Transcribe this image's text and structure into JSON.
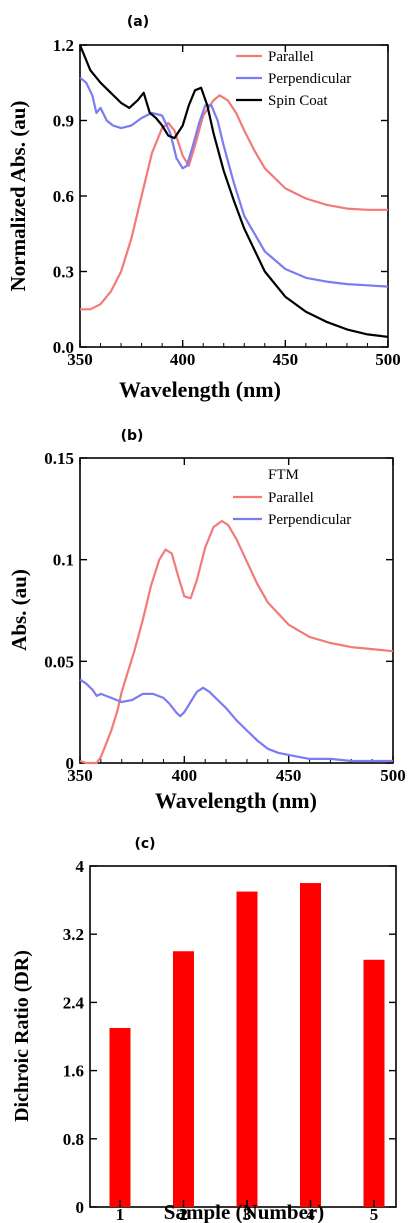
{
  "chart_data": [
    {
      "panel_label": "(a)",
      "type": "line",
      "xlabel": "Wavelength (nm)",
      "ylabel": "Normalized Abs. (au)",
      "xlim": [
        350,
        500
      ],
      "ylim": [
        0,
        1.2
      ],
      "xticks": [
        350,
        400,
        450,
        500
      ],
      "yticks": [
        0.0,
        0.3,
        0.6,
        0.9,
        1.2
      ],
      "xtick_labels": [
        "350",
        "400",
        "450",
        "500"
      ],
      "ytick_labels": [
        "0.0",
        "0.3",
        "0.6",
        "0.9",
        "1.2"
      ],
      "legend_title": "",
      "legend_position": "top-right",
      "series": [
        {
          "name": "Parallel",
          "color": "#f27a7a",
          "x": [
            350,
            355,
            360,
            365,
            370,
            375,
            380,
            385,
            390,
            393,
            396,
            400,
            403,
            406,
            410,
            415,
            418,
            422,
            426,
            430,
            435,
            440,
            450,
            460,
            470,
            480,
            490,
            500
          ],
          "y": [
            0.15,
            0.15,
            0.17,
            0.22,
            0.3,
            0.43,
            0.6,
            0.77,
            0.87,
            0.89,
            0.86,
            0.76,
            0.72,
            0.8,
            0.92,
            0.98,
            1.0,
            0.98,
            0.93,
            0.86,
            0.78,
            0.71,
            0.63,
            0.59,
            0.565,
            0.55,
            0.545,
            0.545
          ]
        },
        {
          "name": "Perpendicular",
          "color": "#7b7bf2",
          "x": [
            350,
            353,
            356,
            358,
            360,
            363,
            366,
            370,
            375,
            380,
            385,
            390,
            394,
            397,
            400,
            402,
            405,
            408,
            411,
            414,
            417,
            420,
            425,
            430,
            440,
            450,
            460,
            470,
            480,
            490,
            500
          ],
          "y": [
            1.07,
            1.05,
            1.0,
            0.93,
            0.95,
            0.9,
            0.88,
            0.87,
            0.88,
            0.91,
            0.93,
            0.92,
            0.85,
            0.75,
            0.71,
            0.72,
            0.8,
            0.89,
            0.96,
            0.96,
            0.9,
            0.8,
            0.65,
            0.52,
            0.38,
            0.31,
            0.275,
            0.26,
            0.25,
            0.245,
            0.24
          ]
        },
        {
          "name": "Spin Coat",
          "color": "#000000",
          "x": [
            350,
            355,
            360,
            365,
            370,
            374,
            378,
            381,
            384,
            387,
            390,
            393,
            396,
            400,
            403,
            406,
            409,
            412,
            415,
            420,
            425,
            430,
            440,
            450,
            460,
            470,
            480,
            490,
            500
          ],
          "y": [
            1.2,
            1.1,
            1.05,
            1.01,
            0.97,
            0.95,
            0.98,
            1.01,
            0.93,
            0.91,
            0.88,
            0.84,
            0.83,
            0.88,
            0.96,
            1.02,
            1.03,
            0.96,
            0.85,
            0.7,
            0.58,
            0.47,
            0.3,
            0.2,
            0.14,
            0.1,
            0.07,
            0.05,
            0.04
          ]
        }
      ]
    },
    {
      "panel_label": "(b)",
      "type": "line",
      "xlabel": "Wavelength (nm)",
      "ylabel": "Abs. (au)",
      "xlim": [
        350,
        500
      ],
      "ylim": [
        0,
        0.15
      ],
      "xticks": [
        350,
        400,
        450,
        500
      ],
      "yticks": [
        0,
        0.05,
        0.1,
        0.15
      ],
      "xtick_labels": [
        "350",
        "400",
        "450",
        "500"
      ],
      "ytick_labels": [
        "0",
        "0.05",
        "0.1",
        "0.15"
      ],
      "legend_title": "FTM",
      "legend_position": "top-right",
      "series": [
        {
          "name": " Parallel",
          "color": "#f27a7a",
          "x": [
            350,
            353,
            356,
            358,
            360,
            362,
            365,
            368,
            370,
            373,
            376,
            380,
            384,
            388,
            391,
            394,
            397,
            400,
            403,
            406,
            410,
            414,
            418,
            421,
            425,
            430,
            435,
            440,
            450,
            460,
            470,
            480,
            490,
            500
          ],
          "y": [
            0.001,
            0.0,
            0.0,
            0.0,
            0.003,
            0.008,
            0.016,
            0.026,
            0.035,
            0.045,
            0.055,
            0.07,
            0.087,
            0.1,
            0.105,
            0.103,
            0.092,
            0.082,
            0.081,
            0.09,
            0.106,
            0.116,
            0.119,
            0.117,
            0.11,
            0.099,
            0.088,
            0.079,
            0.068,
            0.062,
            0.059,
            0.057,
            0.056,
            0.055
          ]
        },
        {
          "name": "Perpendicular",
          "color": "#7b7bf2",
          "x": [
            350,
            353,
            356,
            358,
            360,
            365,
            370,
            375,
            380,
            385,
            390,
            393,
            396,
            398,
            400,
            403,
            406,
            409,
            412,
            416,
            420,
            425,
            430,
            435,
            440,
            445,
            450,
            460,
            470,
            480,
            490,
            500
          ],
          "y": [
            0.041,
            0.039,
            0.036,
            0.033,
            0.034,
            0.032,
            0.03,
            0.031,
            0.034,
            0.034,
            0.032,
            0.029,
            0.025,
            0.023,
            0.025,
            0.03,
            0.035,
            0.037,
            0.035,
            0.031,
            0.027,
            0.021,
            0.016,
            0.011,
            0.007,
            0.005,
            0.004,
            0.002,
            0.002,
            0.001,
            0.001,
            0.001
          ]
        }
      ]
    },
    {
      "panel_label": "(c)",
      "type": "bar",
      "xlabel": "Sample (Number)",
      "ylabel": "Dichroic Ratio (DR)",
      "categories": [
        "1",
        "2",
        "3",
        "4",
        "5"
      ],
      "values": [
        2.1,
        3.0,
        3.7,
        3.8,
        2.9
      ],
      "ylim": [
        0,
        4
      ],
      "yticks": [
        0,
        0.8,
        1.6,
        2.4,
        3.2,
        4
      ],
      "ytick_labels": [
        "0",
        "0.8",
        "1.6",
        "2.4",
        "3.2",
        "4"
      ],
      "bar_color": "#ff0000"
    }
  ]
}
